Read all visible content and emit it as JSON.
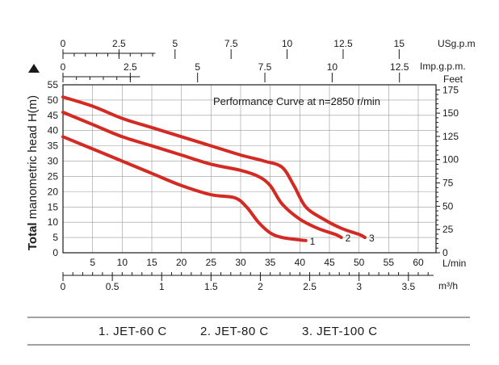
{
  "chart_data": {
    "type": "line",
    "title": "Performance Curve at n=2850 r/min",
    "xlabel": "L/min",
    "ylabel": "Total manometric head H(m)",
    "ylabel_bold_part": "Total",
    "ylabel_rest": " manometric head H(m)",
    "y2label": "Feet",
    "xlim": [
      0,
      63
    ],
    "ylim": [
      0,
      55
    ],
    "grid": true,
    "xticks": [
      5,
      10,
      15,
      20,
      25,
      30,
      35,
      40,
      45,
      50,
      55,
      60
    ],
    "yticks": [
      0,
      5,
      10,
      15,
      20,
      25,
      30,
      35,
      40,
      45,
      50,
      55
    ],
    "y2ticks": [
      0,
      25,
      50,
      75,
      100,
      125,
      150,
      175
    ],
    "secondary_axes": [
      {
        "label": "USg.p.m",
        "ticks": [
          "0",
          "2.5",
          "5",
          "7.5",
          "10",
          "12.5",
          "15"
        ],
        "values": [
          0,
          2.5,
          5,
          7.5,
          10,
          12.5,
          15
        ],
        "factor": 3.785
      },
      {
        "label": "Imp.g.p.m.",
        "ticks": [
          "0",
          "2.5",
          "5",
          "7.5",
          "10",
          "12.5"
        ],
        "values": [
          0,
          2.5,
          5,
          7.5,
          10,
          12.5
        ],
        "factor": 4.546
      },
      {
        "label": "m³/h",
        "ticks": [
          "0",
          "0.5",
          "1",
          "1.5",
          "2",
          "2.5",
          "3",
          "3.5"
        ],
        "values": [
          0,
          0.5,
          1,
          1.5,
          2,
          2.5,
          3,
          3.5
        ],
        "factor": 16.667
      }
    ],
    "series": [
      {
        "name": "1",
        "x": [
          0,
          5,
          10,
          15,
          20,
          25,
          29,
          31,
          33,
          35,
          37,
          40,
          41
        ],
        "y": [
          38,
          34,
          30,
          26,
          22,
          19,
          18,
          15,
          10,
          6.5,
          5,
          4.2,
          4
        ]
      },
      {
        "name": "2",
        "x": [
          0,
          5,
          10,
          15,
          20,
          25,
          30,
          33,
          35,
          37,
          40,
          43,
          46,
          47
        ],
        "y": [
          46,
          42,
          38,
          35,
          32,
          29,
          27,
          25,
          22,
          16,
          11,
          8,
          6,
          5
        ]
      },
      {
        "name": "3",
        "x": [
          0,
          5,
          10,
          15,
          20,
          25,
          30,
          34,
          37,
          39,
          41,
          44,
          47,
          50,
          51
        ],
        "y": [
          51,
          48,
          44,
          41,
          38,
          35,
          32,
          30,
          28,
          22,
          15,
          11,
          8,
          6,
          5
        ]
      }
    ],
    "curve_color": "#d32a23"
  },
  "legend": {
    "items": [
      "1. JET-60 C",
      "2. JET-80 C",
      "3. JET-100 C"
    ]
  }
}
